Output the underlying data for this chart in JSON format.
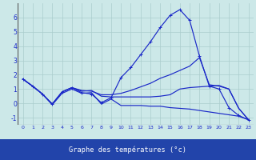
{
  "title": "Graphe des températures (°c)",
  "bg_color": "#cce8e8",
  "plot_bg": "#cce8e8",
  "nav_color": "#2244aa",
  "line_color": "#1a28c8",
  "grid_color": "#aacccc",
  "xlim": [
    -0.5,
    23.5
  ],
  "ylim": [
    -1.5,
    7.0
  ],
  "xtick_labels": [
    "0",
    "1",
    "2",
    "3",
    "4",
    "5",
    "6",
    "7",
    "8",
    "9",
    "10",
    "11",
    "12",
    "13",
    "14",
    "15",
    "16",
    "17",
    "18",
    "19",
    "20",
    "21",
    "22",
    "23"
  ],
  "yticks": [
    -1,
    0,
    1,
    2,
    3,
    4,
    5,
    6
  ],
  "curve1_x": [
    0,
    1,
    2,
    3,
    4,
    5,
    6,
    7,
    8,
    9,
    10,
    11,
    12,
    13,
    14,
    15,
    16,
    17,
    18,
    19,
    20,
    21,
    22,
    23
  ],
  "curve1_y": [
    1.7,
    1.2,
    0.65,
    -0.05,
    0.8,
    1.1,
    0.75,
    0.65,
    0.05,
    0.4,
    1.8,
    2.5,
    3.4,
    4.3,
    5.3,
    6.15,
    6.55,
    5.8,
    3.3,
    1.2,
    1.0,
    -0.3,
    -0.85,
    -1.15
  ],
  "curve2_x": [
    0,
    1,
    2,
    3,
    4,
    5,
    6,
    7,
    8,
    9,
    10,
    11,
    12,
    13,
    14,
    15,
    16,
    17,
    18,
    19,
    20,
    21,
    22,
    23
  ],
  "curve2_y": [
    1.7,
    1.2,
    0.65,
    -0.05,
    0.8,
    1.1,
    0.9,
    0.85,
    0.6,
    0.6,
    0.7,
    0.9,
    1.15,
    1.4,
    1.75,
    2.0,
    2.3,
    2.6,
    3.2,
    1.3,
    1.2,
    1.0,
    -0.35,
    -1.15
  ],
  "curve3_x": [
    0,
    1,
    2,
    3,
    4,
    5,
    6,
    7,
    8,
    9,
    10,
    11,
    12,
    13,
    14,
    15,
    16,
    17,
    18,
    19,
    20,
    21,
    22,
    23
  ],
  "curve3_y": [
    1.7,
    1.2,
    0.65,
    -0.05,
    0.8,
    1.1,
    0.85,
    0.9,
    0.5,
    0.45,
    0.45,
    0.45,
    0.45,
    0.45,
    0.5,
    0.6,
    1.0,
    1.1,
    1.15,
    1.2,
    1.25,
    1.0,
    -0.35,
    -1.15
  ],
  "curve4_x": [
    0,
    1,
    2,
    3,
    4,
    5,
    6,
    7,
    8,
    9,
    10,
    11,
    12,
    13,
    14,
    15,
    16,
    17,
    18,
    19,
    20,
    21,
    22,
    23
  ],
  "curve4_y": [
    1.7,
    1.2,
    0.65,
    -0.1,
    0.7,
    1.0,
    0.7,
    0.75,
    -0.05,
    0.3,
    -0.15,
    -0.15,
    -0.15,
    -0.2,
    -0.2,
    -0.3,
    -0.35,
    -0.4,
    -0.5,
    -0.6,
    -0.7,
    -0.8,
    -0.9,
    -1.15
  ]
}
